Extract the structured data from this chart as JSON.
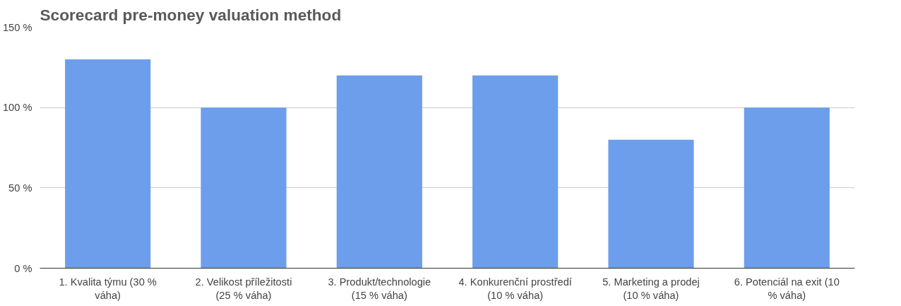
{
  "chart_data": {
    "type": "bar",
    "title": "Scorecard pre-money valuation method",
    "categories": [
      "1. Kvalita týmu (30 % váha)",
      "2. Velikost příležitosti (25 % váha)",
      "3. Produkt/technologie (15 % váha)",
      "4. Konkurenční prostředí (10 % váha)",
      "5. Marketing a prodej (10 % váha)",
      "6. Potenciál na exit (10 % váha)"
    ],
    "values": [
      130,
      100,
      120,
      120,
      80,
      100
    ],
    "color": "#6d9eeb",
    "ylim": [
      0,
      150
    ],
    "yticks": [
      {
        "value": 0,
        "label": "0 %"
      },
      {
        "value": 50,
        "label": "50 %"
      },
      {
        "value": 100,
        "label": "100 %"
      },
      {
        "value": 150,
        "label": "150 %"
      }
    ],
    "grid": "y"
  }
}
